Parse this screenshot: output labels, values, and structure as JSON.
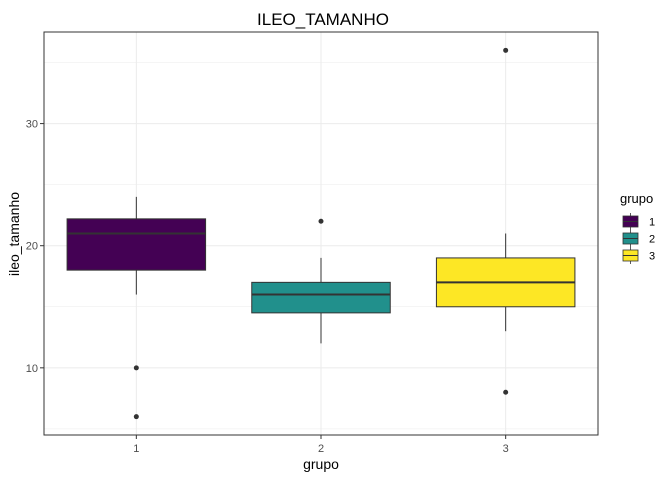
{
  "chart_data": {
    "type": "boxplot",
    "title": "ILEO_TAMANHO",
    "xlabel": "grupo",
    "ylabel": "ileo_tamanho",
    "categories": [
      "1",
      "2",
      "3"
    ],
    "ylim": [
      4.5,
      37.5
    ],
    "y_ticks": [
      10,
      20,
      30
    ],
    "grid": true,
    "legend": {
      "title": "grupo",
      "position": "right",
      "entries": [
        "1",
        "2",
        "3"
      ]
    },
    "colors": [
      "#440154",
      "#21908C",
      "#FDE725"
    ],
    "series": [
      {
        "group": "1",
        "whisker_low": 16,
        "q1": 18,
        "median": 21,
        "q3": 22.2,
        "whisker_high": 24,
        "outliers": [
          10,
          6
        ]
      },
      {
        "group": "2",
        "whisker_low": 12,
        "q1": 14.5,
        "median": 16,
        "q3": 17,
        "whisker_high": 19,
        "outliers": [
          22
        ]
      },
      {
        "group": "3",
        "whisker_low": 13,
        "q1": 15,
        "median": 17,
        "q3": 19,
        "whisker_high": 21,
        "outliers": [
          36,
          8
        ]
      }
    ]
  }
}
